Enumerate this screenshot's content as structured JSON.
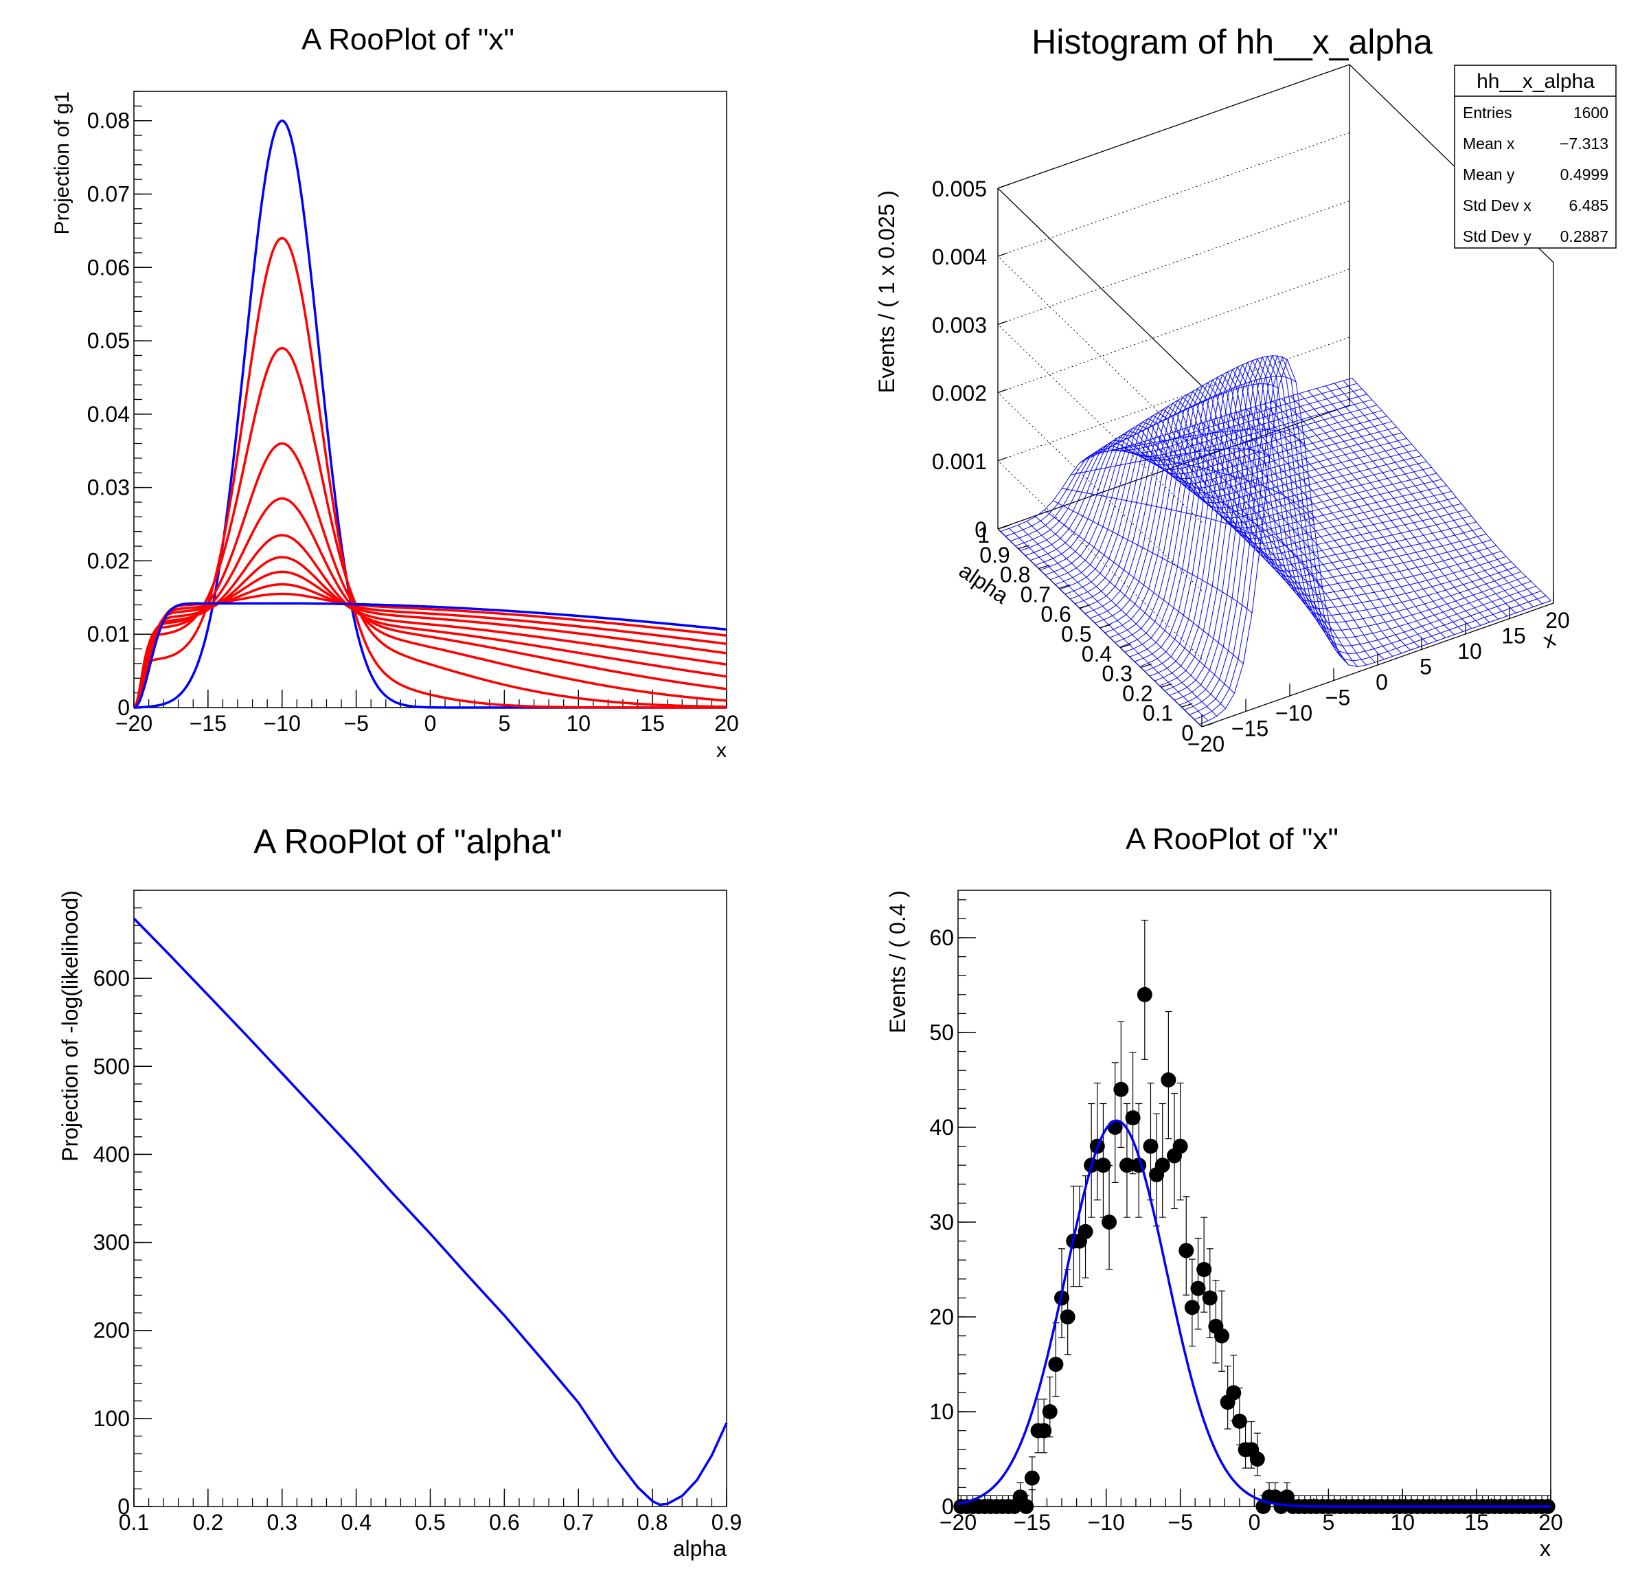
{
  "chart_data": [
    {
      "type": "line",
      "title": "A RooPlot of \"x\"",
      "xlabel": "x",
      "ylabel": "Projection of g1",
      "xlim": [
        -20,
        20
      ],
      "ylim": [
        0,
        0.084
      ],
      "x_ticks": [
        -20,
        -15,
        -10,
        -5,
        0,
        5,
        10,
        15,
        20
      ],
      "x_tick_labels": [
        "−20",
        "−15",
        "−10",
        "−5",
        "0",
        "5",
        "10",
        "15",
        "20"
      ],
      "y_ticks": [
        0,
        0.01,
        0.02,
        0.03,
        0.04,
        0.05,
        0.06,
        0.07,
        0.08
      ],
      "y_tick_labels": [
        "0",
        "0.01",
        "0.02",
        "0.03",
        "0.04",
        "0.05",
        "0.06",
        "0.07",
        "0.08"
      ],
      "colors": {
        "outer": "#0000ff",
        "inner": "#ff0000"
      },
      "series": [
        {
          "color": "#0000ff",
          "alpha": 0.0,
          "peak": 0.08
        },
        {
          "color": "#ff0000",
          "alpha": 0.1,
          "peak": 0.064
        },
        {
          "color": "#ff0000",
          "alpha": 0.2,
          "peak": 0.049
        },
        {
          "color": "#ff0000",
          "alpha": 0.3,
          "peak": 0.036
        },
        {
          "color": "#ff0000",
          "alpha": 0.4,
          "peak": 0.0285
        },
        {
          "color": "#ff0000",
          "alpha": 0.5,
          "peak": 0.0235
        },
        {
          "color": "#ff0000",
          "alpha": 0.6,
          "peak": 0.0205
        },
        {
          "color": "#ff0000",
          "alpha": 0.7,
          "peak": 0.0185
        },
        {
          "color": "#ff0000",
          "alpha": 0.8,
          "peak": 0.0168
        },
        {
          "color": "#ff0000",
          "alpha": 0.9,
          "peak": 0.0155
        },
        {
          "color": "#0000ff",
          "alpha": 1.0,
          "peak": 0.0142
        }
      ]
    },
    {
      "type": "surface",
      "title": "Histogram of hh__x_alpha",
      "xlabel": "x",
      "ylabel": "alpha",
      "zlabel": "Events / ( 1 x 0.025 )",
      "xlim": [
        -20,
        20
      ],
      "ylim": [
        0,
        1
      ],
      "zlim": [
        0,
        0.005
      ],
      "x_tick_labels": [
        "−20",
        "−15",
        "−10",
        "−5",
        "0",
        "5",
        "10",
        "15",
        "20"
      ],
      "y_tick_labels": [
        "0",
        "0.1",
        "0.2",
        "0.3",
        "0.4",
        "0.5",
        "0.6",
        "0.7",
        "0.8",
        "0.9",
        "1"
      ],
      "z_tick_labels": [
        "0",
        "0.001",
        "0.002",
        "0.003",
        "0.004",
        "0.005"
      ],
      "mesh_color": "#0000ff",
      "stats": {
        "title": "hh__x_alpha",
        "rows": [
          {
            "label": "Entries",
            "value": "1600"
          },
          {
            "label": "Mean x",
            "value": "−7.313"
          },
          {
            "label": "Mean y",
            "value": "0.4999"
          },
          {
            "label": "Std Dev x",
            "value": "6.485"
          },
          {
            "label": "Std Dev y",
            "value": "0.2887"
          }
        ]
      }
    },
    {
      "type": "line",
      "title": "A RooPlot of \"alpha\"",
      "xlabel": "alpha",
      "ylabel": "Projection of -log(likelihood)",
      "xlim": [
        0.1,
        0.9
      ],
      "ylim": [
        0,
        700
      ],
      "x_tick_labels": [
        "0.1",
        "0.2",
        "0.3",
        "0.4",
        "0.5",
        "0.6",
        "0.7",
        "0.8",
        "0.9"
      ],
      "y_tick_labels": [
        "0",
        "100",
        "200",
        "300",
        "400",
        "500",
        "600"
      ],
      "color": "#0000ff",
      "x": [
        0.1,
        0.15,
        0.2,
        0.25,
        0.3,
        0.35,
        0.4,
        0.45,
        0.5,
        0.55,
        0.6,
        0.65,
        0.7,
        0.75,
        0.78,
        0.8,
        0.81,
        0.82,
        0.84,
        0.86,
        0.88,
        0.9
      ],
      "y": [
        668,
        625,
        581,
        537,
        492,
        447,
        402,
        355,
        310,
        263,
        217,
        168,
        118,
        55,
        22,
        6,
        2,
        3,
        12,
        30,
        58,
        95
      ]
    },
    {
      "type": "scatter",
      "title": "A RooPlot of \"x\"",
      "xlabel": "x",
      "ylabel": "Events / ( 0.4 )",
      "xlim": [
        -20,
        20
      ],
      "ylim": [
        0,
        65
      ],
      "x_tick_labels": [
        "−20",
        "−15",
        "−10",
        "−5",
        "0",
        "5",
        "10",
        "15",
        "20"
      ],
      "y_tick_labels": [
        "0",
        "10",
        "20",
        "30",
        "40",
        "50",
        "60"
      ],
      "point_color": "#000000",
      "fit_color": "#0000ff",
      "bin_width": 0.4,
      "fit_mean": -9.3,
      "fit_sigma": 3.4,
      "fit_peak": 40.7,
      "counts": [
        0,
        0,
        0,
        0,
        0,
        0,
        0,
        0,
        0,
        0,
        1,
        0,
        3,
        8,
        8,
        10,
        15,
        22,
        20,
        28,
        28,
        29,
        36,
        38,
        36,
        30,
        40,
        44,
        36,
        41,
        36,
        54,
        38,
        35,
        36,
        45,
        37,
        38,
        27,
        21,
        23,
        25,
        22,
        19,
        18,
        11,
        12,
        9,
        6,
        6,
        5,
        0,
        1,
        1,
        0,
        1,
        0,
        0,
        0,
        0,
        0,
        0,
        0,
        0,
        0,
        0,
        0,
        0,
        0,
        0,
        0,
        0,
        0,
        0,
        0,
        0,
        0,
        0,
        0,
        0,
        0,
        0,
        0,
        0,
        0,
        0,
        0,
        0,
        0,
        0,
        0,
        0,
        0,
        0,
        0,
        0,
        0,
        0,
        0,
        0
      ]
    }
  ]
}
